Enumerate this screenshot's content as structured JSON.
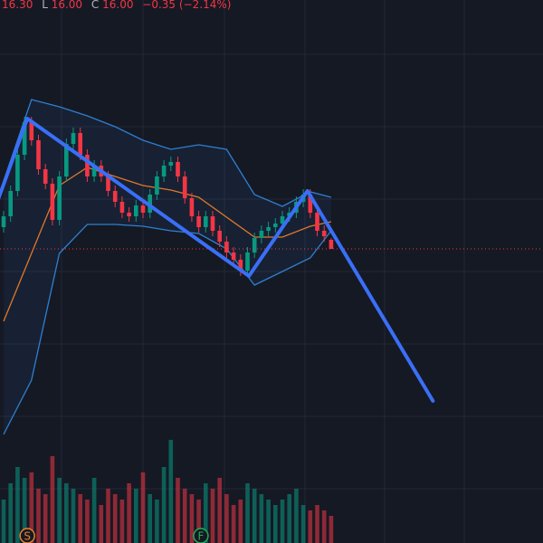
{
  "chart_data": {
    "type": "candlestick",
    "legend": {
      "high": "16.30",
      "low_label": "L",
      "low": "16.00",
      "close_label": "C",
      "close": "16.00",
      "change": "−0.35 (−2.14%)"
    },
    "xlim": [
      -0.52,
      77.4
    ],
    "ylim": [
      7.875,
      22.875
    ],
    "up_color": "#089981",
    "down_color": "#f23645",
    "open": [
      16.6,
      16.9,
      17.6,
      18.6,
      19.5,
      19.0,
      18.2,
      17.8,
      16.8,
      18.0,
      18.9,
      19.2,
      18.6,
      18.0,
      18.3,
      18.0,
      17.6,
      17.3,
      17.0,
      16.9,
      17.2,
      17.0,
      17.5,
      18.0,
      18.3,
      18.4,
      18.0,
      17.4,
      16.9,
      16.6,
      16.9,
      16.5,
      16.2,
      15.9,
      15.7,
      15.4,
      15.9,
      16.3,
      16.5,
      16.6,
      16.7,
      16.9,
      17.0,
      17.3,
      17.5,
      17.0,
      16.5,
      16.25
    ],
    "high": [
      17.05,
      17.75,
      18.75,
      19.65,
      19.65,
      19.15,
      18.35,
      17.95,
      18.15,
      19.05,
      19.35,
      19.35,
      18.75,
      18.45,
      18.45,
      18.15,
      17.75,
      17.45,
      17.15,
      17.35,
      17.35,
      17.65,
      18.15,
      18.45,
      18.55,
      18.55,
      18.15,
      17.55,
      17.05,
      17.05,
      17.05,
      16.65,
      16.35,
      16.05,
      15.85,
      16.05,
      16.45,
      16.65,
      16.75,
      16.85,
      17.05,
      17.15,
      17.45,
      17.65,
      17.65,
      17.15,
      16.65,
      16.3
    ],
    "low": [
      16.45,
      16.75,
      17.45,
      18.45,
      18.85,
      18.05,
      17.65,
      16.65,
      16.65,
      17.85,
      18.75,
      18.45,
      17.85,
      17.85,
      17.85,
      17.45,
      17.15,
      16.85,
      16.75,
      16.75,
      16.85,
      16.85,
      17.35,
      17.85,
      18.15,
      17.85,
      17.25,
      16.75,
      16.45,
      16.45,
      16.35,
      16.05,
      15.75,
      15.55,
      15.25,
      15.25,
      15.75,
      16.15,
      16.35,
      16.45,
      16.55,
      16.75,
      16.85,
      17.15,
      16.85,
      16.35,
      16.2,
      16.0
    ],
    "close": [
      16.9,
      17.6,
      18.6,
      19.5,
      19.0,
      18.2,
      17.8,
      16.8,
      18.0,
      18.9,
      19.2,
      18.6,
      18.0,
      18.3,
      18.0,
      17.6,
      17.3,
      17.0,
      16.9,
      17.2,
      17.0,
      17.5,
      18.0,
      18.3,
      18.4,
      18.0,
      17.4,
      16.9,
      16.6,
      16.9,
      16.5,
      16.2,
      15.9,
      15.7,
      15.4,
      15.9,
      16.3,
      16.5,
      16.6,
      16.7,
      16.9,
      17.0,
      17.3,
      17.5,
      17.0,
      16.5,
      16.35,
      16.0
    ],
    "volume": [
      40,
      55,
      70,
      60,
      65,
      50,
      45,
      80,
      60,
      55,
      50,
      45,
      40,
      60,
      35,
      50,
      45,
      40,
      55,
      50,
      65,
      45,
      40,
      70,
      95,
      60,
      50,
      45,
      40,
      55,
      50,
      60,
      45,
      35,
      40,
      55,
      50,
      45,
      40,
      35,
      40,
      45,
      50,
      35,
      30,
      35,
      30,
      25
    ],
    "volume_lim": [
      0,
      100
    ],
    "bands": {
      "x": [
        0,
        4,
        8,
        12,
        16,
        20,
        24,
        28,
        32,
        36,
        40,
        44,
        47
      ],
      "upper": [
        17.875,
        20.125,
        19.925,
        19.675,
        19.375,
        19.0,
        18.75,
        18.875,
        18.75,
        17.5,
        17.175,
        17.575,
        17.425
      ],
      "middle": [
        14.0,
        15.875,
        17.75,
        18.25,
        18.0,
        17.75,
        17.625,
        17.425,
        16.875,
        16.325,
        16.325,
        16.625,
        16.75
      ],
      "lower": [
        10.875,
        12.375,
        15.875,
        16.675,
        16.675,
        16.625,
        16.5,
        16.425,
        16.0,
        15.0,
        15.375,
        15.75,
        16.5
      ],
      "band_color": "#2f7fd0",
      "middle_color": "#e0782a"
    },
    "zigzag": {
      "x": [
        -1,
        3.4,
        35.2,
        43.6,
        61.6
      ],
      "y": [
        17.25,
        19.6,
        15.25,
        17.6,
        11.8
      ],
      "color": "#3a6ff7"
    },
    "events": [
      {
        "label": "S",
        "x": 3.4,
        "color": "#e8802b"
      },
      {
        "label": "F",
        "x": 28.3,
        "color": "#22ab55"
      }
    ]
  }
}
